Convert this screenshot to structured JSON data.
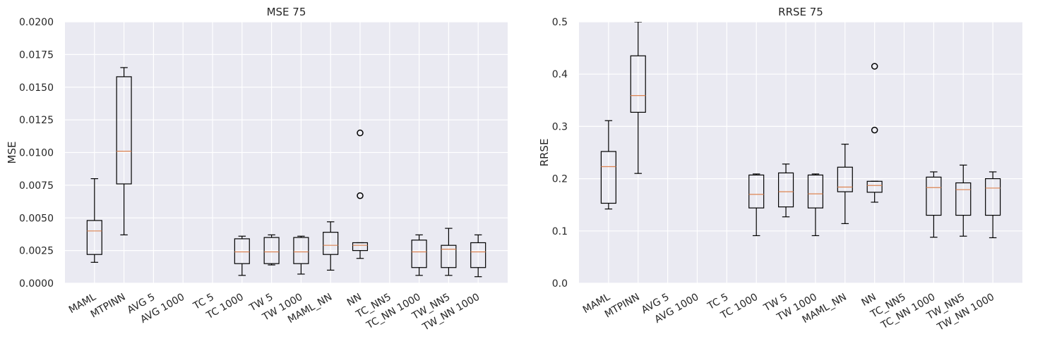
{
  "chart_data": [
    {
      "type": "box",
      "title": "MSE 75",
      "ylabel": "MSE",
      "ylim": [
        0,
        0.02
      ],
      "yticks": [
        "0.0000",
        "0.0025",
        "0.0050",
        "0.0075",
        "0.0100",
        "0.0125",
        "0.0150",
        "0.0175",
        "0.0200"
      ],
      "grid": true,
      "categories": [
        "MAML",
        "MTPINN",
        "AVG 5",
        "AVG 1000",
        "TC 5",
        "TC 1000",
        "TW 5",
        "TW 1000",
        "MAML_NN",
        "NN",
        "TC_NN5",
        "TC_NN 1000",
        "TW_NN5",
        "TW_NN 1000"
      ],
      "boxes": [
        {
          "whislo": 0.0016,
          "q1": 0.0022,
          "med": 0.004,
          "q3": 0.0048,
          "whishi": 0.008,
          "fliers": []
        },
        {
          "whislo": 0.0037,
          "q1": 0.0076,
          "med": 0.0101,
          "q3": 0.0158,
          "whishi": 0.0165,
          "fliers": []
        },
        null,
        null,
        null,
        {
          "whislo": 0.0006,
          "q1": 0.0015,
          "med": 0.0024,
          "q3": 0.0034,
          "whishi": 0.0036,
          "fliers": []
        },
        {
          "whislo": 0.0014,
          "q1": 0.0015,
          "med": 0.0024,
          "q3": 0.0035,
          "whishi": 0.0037,
          "fliers": []
        },
        {
          "whislo": 0.0007,
          "q1": 0.0015,
          "med": 0.0024,
          "q3": 0.0035,
          "whishi": 0.0036,
          "fliers": []
        },
        {
          "whislo": 0.001,
          "q1": 0.0022,
          "med": 0.0029,
          "q3": 0.0039,
          "whishi": 0.0047,
          "fliers": []
        },
        {
          "whislo": 0.0019,
          "q1": 0.0025,
          "med": 0.0029,
          "q3": 0.0031,
          "whishi": 0.0031,
          "fliers": [
            0.0067,
            0.0115
          ]
        },
        null,
        {
          "whislo": 0.0006,
          "q1": 0.0012,
          "med": 0.0024,
          "q3": 0.0033,
          "whishi": 0.0037,
          "fliers": []
        },
        {
          "whislo": 0.0006,
          "q1": 0.0012,
          "med": 0.0026,
          "q3": 0.0029,
          "whishi": 0.0042,
          "fliers": []
        },
        {
          "whislo": 0.0005,
          "q1": 0.0012,
          "med": 0.0024,
          "q3": 0.0031,
          "whishi": 0.0037,
          "fliers": []
        }
      ]
    },
    {
      "type": "box",
      "title": "RRSE 75",
      "ylabel": "RRSE",
      "ylim": [
        0,
        0.5
      ],
      "yticks": [
        "0.0",
        "0.1",
        "0.2",
        "0.3",
        "0.4",
        "0.5"
      ],
      "grid": true,
      "categories": [
        "MAML",
        "MTPINN",
        "AVG 5",
        "AVG 1000",
        "TC 5",
        "TC 1000",
        "TW 5",
        "TW 1000",
        "MAML_NN",
        "NN",
        "TC_NN5",
        "TC_NN 1000",
        "TW_NN5",
        "TW_NN 1000"
      ],
      "boxes": [
        {
          "whislo": 0.142,
          "q1": 0.153,
          "med": 0.223,
          "q3": 0.252,
          "whishi": 0.311,
          "fliers": []
        },
        {
          "whislo": 0.21,
          "q1": 0.327,
          "med": 0.359,
          "q3": 0.435,
          "whishi": 0.5,
          "fliers": []
        },
        null,
        null,
        null,
        {
          "whislo": 0.091,
          "q1": 0.144,
          "med": 0.17,
          "q3": 0.207,
          "whishi": 0.209,
          "fliers": []
        },
        {
          "whislo": 0.127,
          "q1": 0.146,
          "med": 0.175,
          "q3": 0.211,
          "whishi": 0.228,
          "fliers": []
        },
        {
          "whislo": 0.091,
          "q1": 0.144,
          "med": 0.171,
          "q3": 0.207,
          "whishi": 0.209,
          "fliers": []
        },
        {
          "whislo": 0.114,
          "q1": 0.175,
          "med": 0.184,
          "q3": 0.222,
          "whishi": 0.266,
          "fliers": []
        },
        {
          "whislo": 0.155,
          "q1": 0.174,
          "med": 0.187,
          "q3": 0.195,
          "whishi": 0.195,
          "fliers": [
            0.293,
            0.415
          ]
        },
        null,
        {
          "whislo": 0.088,
          "q1": 0.13,
          "med": 0.183,
          "q3": 0.203,
          "whishi": 0.213,
          "fliers": []
        },
        {
          "whislo": 0.09,
          "q1": 0.13,
          "med": 0.179,
          "q3": 0.192,
          "whishi": 0.226,
          "fliers": []
        },
        {
          "whislo": 0.087,
          "q1": 0.13,
          "med": 0.182,
          "q3": 0.2,
          "whishi": 0.213,
          "fliers": []
        }
      ]
    }
  ]
}
